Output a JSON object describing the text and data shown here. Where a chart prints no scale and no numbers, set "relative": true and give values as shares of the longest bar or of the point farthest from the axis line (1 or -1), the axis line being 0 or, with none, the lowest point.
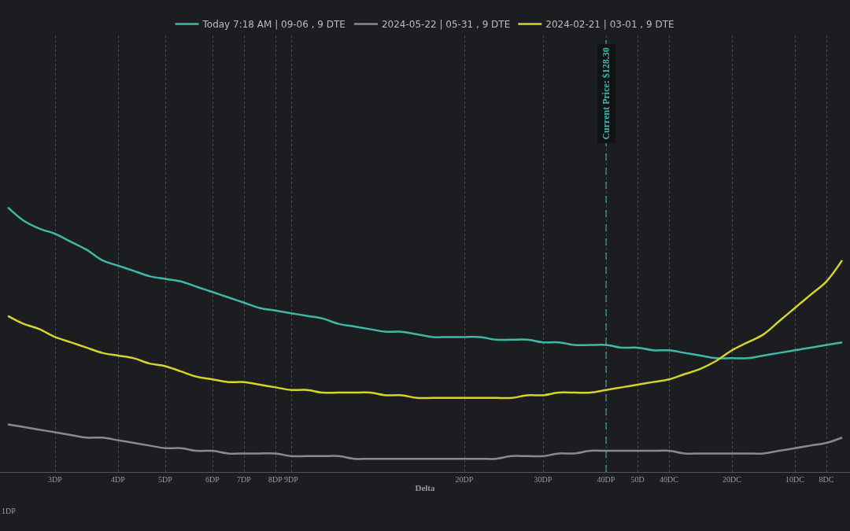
{
  "chart_data": {
    "type": "line",
    "xlabel": "Delta",
    "relative": true,
    "grid": "x",
    "legend": "top",
    "line_style": "solid",
    "categories": [
      null,
      null,
      null,
      "3DP",
      null,
      null,
      null,
      "4DP",
      null,
      null,
      "5DP",
      null,
      null,
      "6DP",
      null,
      "7DP",
      null,
      "8DP",
      "9DP",
      null,
      null,
      null,
      null,
      null,
      null,
      null,
      null,
      null,
      null,
      "20DP",
      null,
      null,
      null,
      null,
      "30DP",
      null,
      null,
      null,
      "40DP",
      null,
      "50D",
      null,
      "40DC",
      null,
      null,
      null,
      "20DC",
      null,
      null,
      null,
      "10DC",
      null,
      "8DC",
      null
    ],
    "ref_lines": [
      {
        "axis": "x",
        "value": "40DP",
        "label": "Current Price: $128.30",
        "color": "#3fb8a8",
        "line_style": "dashed"
      }
    ],
    "annotations": [
      "1DP"
    ],
    "series": [
      {
        "name": "Today 7:18 AM | 09-06 , 9 DTE",
        "color": "#3fb8a8",
        "values": [
          1,
          0.95,
          0.92,
          0.9,
          0.87,
          0.84,
          0.8,
          0.78,
          0.76,
          0.74,
          0.73,
          0.72,
          0.7,
          0.68,
          0.66,
          0.64,
          0.62,
          0.61,
          0.6,
          0.59,
          0.58,
          0.56,
          0.55,
          0.54,
          0.53,
          0.53,
          0.52,
          0.51,
          0.51,
          0.51,
          0.51,
          0.5,
          0.5,
          0.5,
          0.49,
          0.49,
          0.48,
          0.48,
          0.48,
          0.47,
          0.47,
          0.46,
          0.46,
          0.45,
          0.44,
          0.43,
          0.43,
          0.43,
          0.44,
          0.45,
          0.46,
          0.47,
          0.48,
          0.49
        ]
      },
      {
        "name": "2024-05-22 | 05-31 , 9 DTE",
        "color": "#8a8a8a",
        "values": [
          0.18,
          0.17,
          0.16,
          0.15,
          0.14,
          0.13,
          0.13,
          0.12,
          0.11,
          0.1,
          0.09,
          0.09,
          0.08,
          0.08,
          0.07,
          0.07,
          0.07,
          0.07,
          0.06,
          0.06,
          0.06,
          0.06,
          0.05,
          0.05,
          0.05,
          0.05,
          0.05,
          0.05,
          0.05,
          0.05,
          0.05,
          0.05,
          0.06,
          0.06,
          0.06,
          0.07,
          0.07,
          0.08,
          0.08,
          0.08,
          0.08,
          0.08,
          0.08,
          0.07,
          0.07,
          0.07,
          0.07,
          0.07,
          0.07,
          0.08,
          0.09,
          0.1,
          0.11,
          0.13
        ]
      },
      {
        "name": "2024-02-21 | 03-01 , 9 DTE",
        "color": "#d4d42a",
        "values": [
          0.59,
          0.56,
          0.54,
          0.51,
          0.49,
          0.47,
          0.45,
          0.44,
          0.43,
          0.41,
          0.4,
          0.38,
          0.36,
          0.35,
          0.34,
          0.34,
          0.33,
          0.32,
          0.31,
          0.31,
          0.3,
          0.3,
          0.3,
          0.3,
          0.29,
          0.29,
          0.28,
          0.28,
          0.28,
          0.28,
          0.28,
          0.28,
          0.28,
          0.29,
          0.29,
          0.3,
          0.3,
          0.3,
          0.31,
          0.32,
          0.33,
          0.34,
          0.35,
          0.37,
          0.39,
          0.42,
          0.46,
          0.49,
          0.52,
          0.57,
          0.62,
          0.67,
          0.72,
          0.8
        ]
      }
    ]
  }
}
